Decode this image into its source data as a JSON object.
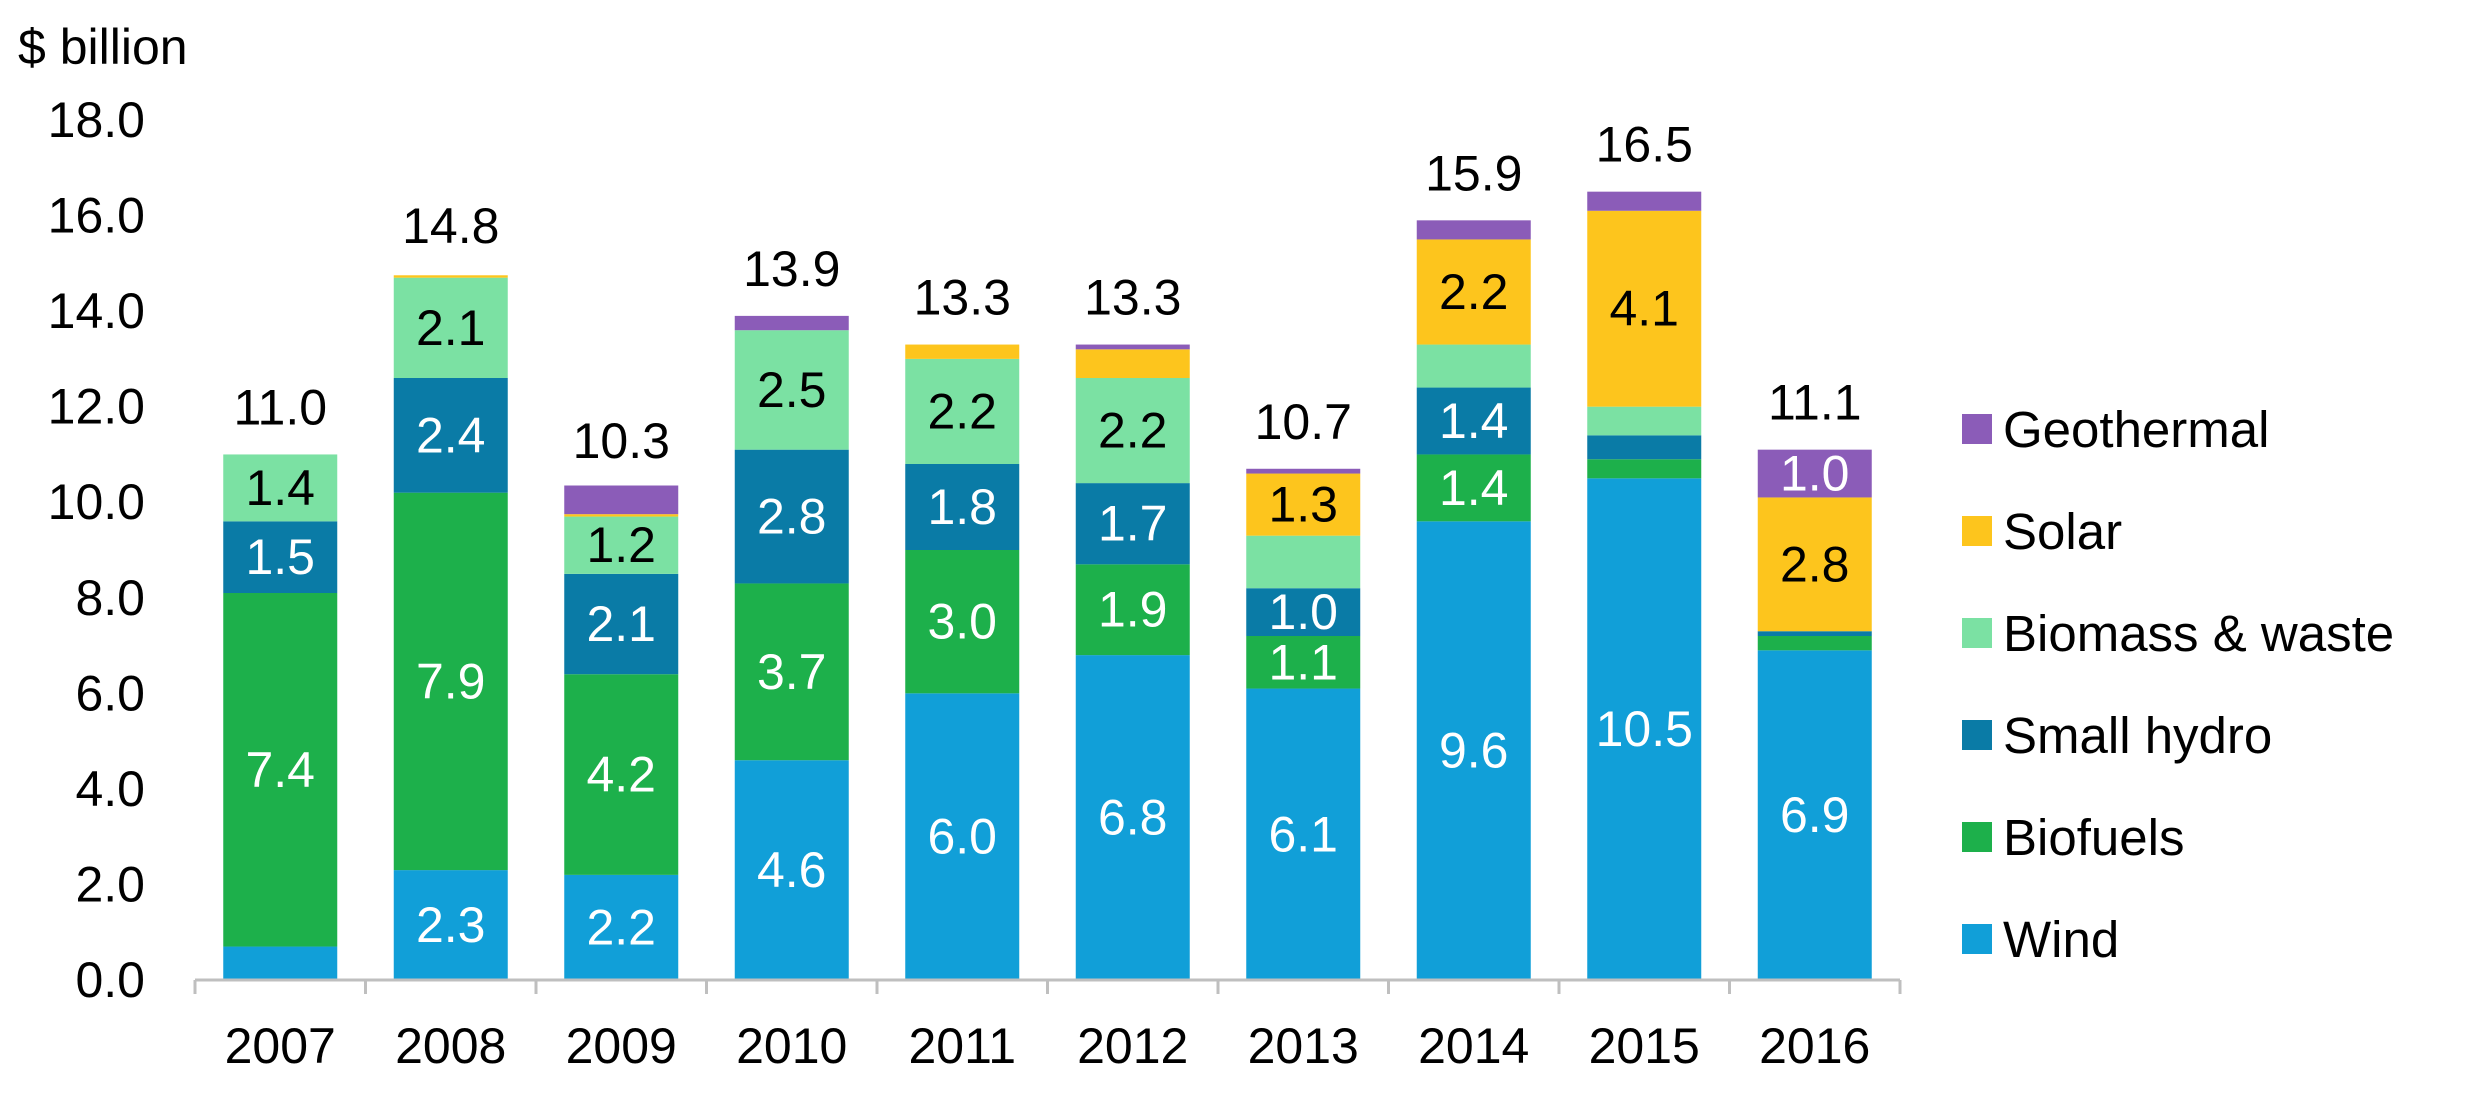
{
  "chart_data": {
    "type": "bar",
    "stacked": true,
    "unit_label": "$ billion",
    "categories": [
      "2007",
      "2008",
      "2009",
      "2010",
      "2011",
      "2012",
      "2013",
      "2014",
      "2015",
      "2016"
    ],
    "ylim": [
      0,
      18
    ],
    "yticks": [
      "0.0",
      "2.0",
      "4.0",
      "6.0",
      "8.0",
      "10.0",
      "12.0",
      "14.0",
      "16.0",
      "18.0"
    ],
    "grid": false,
    "legend_position": "right",
    "series": [
      {
        "name": "Wind",
        "color": "#119FD8",
        "values": [
          0.7,
          2.3,
          2.2,
          4.6,
          6.0,
          6.8,
          6.1,
          9.6,
          10.5,
          6.9
        ],
        "labels": [
          "",
          "2.3",
          "2.2",
          "4.6",
          "6.0",
          "6.8",
          "6.1",
          "9.6",
          "10.5",
          "6.9"
        ],
        "label_color": "#ffffff"
      },
      {
        "name": "Biofuels",
        "color": "#1DB04B",
        "values": [
          7.4,
          7.9,
          4.2,
          3.7,
          3.0,
          1.9,
          1.1,
          1.4,
          0.4,
          0.3
        ],
        "labels": [
          "7.4",
          "7.9",
          "4.2",
          "3.7",
          "3.0",
          "1.9",
          "1.1",
          "1.4",
          "",
          ""
        ],
        "label_color": "#ffffff"
      },
      {
        "name": "Small hydro",
        "color": "#0A7BA6",
        "values": [
          1.5,
          2.4,
          2.1,
          2.8,
          1.8,
          1.7,
          1.0,
          1.4,
          0.5,
          0.1
        ],
        "labels": [
          "1.5",
          "2.4",
          "2.1",
          "2.8",
          "1.8",
          "1.7",
          "1.0",
          "1.4",
          "",
          ""
        ],
        "label_color": "#ffffff"
      },
      {
        "name": "Biomass & waste",
        "color": "#7BE1A3",
        "values": [
          1.4,
          2.1,
          1.2,
          2.5,
          2.2,
          2.2,
          1.1,
          0.9,
          0.6,
          0.0
        ],
        "labels": [
          "1.4",
          "2.1",
          "1.2",
          "2.5",
          "2.2",
          "2.2",
          "",
          "",
          "",
          ""
        ],
        "label_color": "#000000"
      },
      {
        "name": "Solar",
        "color": "#FDC51D",
        "values": [
          0.0,
          0.05,
          0.05,
          0.0,
          0.3,
          0.6,
          1.3,
          2.2,
          4.1,
          2.8
        ],
        "labels": [
          "",
          "",
          "",
          "",
          "",
          "",
          "1.3",
          "2.2",
          "4.1",
          "2.8"
        ],
        "label_color": "#000000"
      },
      {
        "name": "Geothermal",
        "color": "#8B5CB8",
        "values": [
          0.0,
          0.0,
          0.6,
          0.3,
          0.0,
          0.1,
          0.1,
          0.4,
          0.4,
          1.0
        ],
        "labels": [
          "",
          "",
          "",
          "",
          "",
          "",
          "",
          "",
          "",
          "1.0"
        ],
        "label_color": "#ffffff"
      }
    ],
    "totals": [
      "11.0",
      "14.8",
      "10.3",
      "13.9",
      "13.3",
      "13.3",
      "10.7",
      "15.9",
      "16.5",
      "11.1"
    ],
    "total_values": [
      11.0,
      14.8,
      10.3,
      13.9,
      13.3,
      13.3,
      10.7,
      15.9,
      16.5,
      11.1
    ]
  }
}
